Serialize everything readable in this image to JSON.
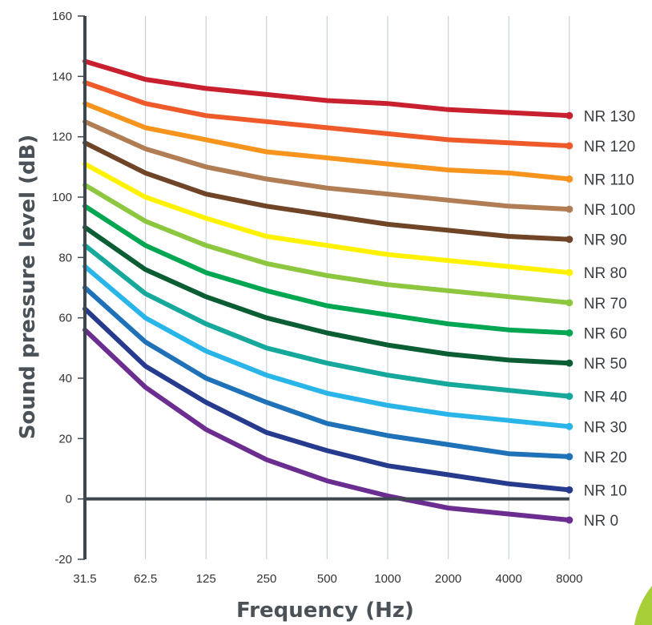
{
  "chart_data": {
    "type": "line",
    "xlabel": "Frequency (Hz)",
    "ylabel": "Sound pressure level (dB)",
    "categories": [
      "31.5",
      "62.5",
      "125",
      "250",
      "500",
      "1000",
      "2000",
      "4000",
      "8000"
    ],
    "ylim": [
      -20,
      160
    ],
    "yticks": [
      "-20",
      "0",
      "20",
      "40",
      "60",
      "80",
      "100",
      "120",
      "140",
      "160"
    ],
    "grid": "vertical",
    "legend": "end-of-line labels",
    "series": [
      {
        "name": "NR 130",
        "color": "#c8202f",
        "values": [
          145,
          139,
          136,
          134,
          132,
          131,
          129,
          128,
          127
        ]
      },
      {
        "name": "NR 120",
        "color": "#ee5a2a",
        "values": [
          138,
          131,
          127,
          125,
          123,
          121,
          119,
          118,
          117
        ]
      },
      {
        "name": "NR 110",
        "color": "#f7941d",
        "values": [
          131,
          123,
          119,
          115,
          113,
          111,
          109,
          108,
          106
        ]
      },
      {
        "name": "NR 100",
        "color": "#b07d54",
        "values": [
          125,
          116,
          110,
          106,
          103,
          101,
          99,
          97,
          96
        ]
      },
      {
        "name": "NR 90",
        "color": "#6f4427",
        "values": [
          118,
          108,
          101,
          97,
          94,
          91,
          89,
          87,
          86
        ]
      },
      {
        "name": "NR 80",
        "color": "#fff200",
        "values": [
          111,
          100,
          93,
          87,
          84,
          81,
          79,
          77,
          75
        ]
      },
      {
        "name": "NR 70",
        "color": "#8dc63f",
        "values": [
          104,
          92,
          84,
          78,
          74,
          71,
          69,
          67,
          65
        ]
      },
      {
        "name": "NR 60",
        "color": "#00a651",
        "values": [
          97,
          84,
          75,
          69,
          64,
          61,
          58,
          56,
          55
        ]
      },
      {
        "name": "NR 50",
        "color": "#0b5e34",
        "values": [
          90,
          76,
          67,
          60,
          55,
          51,
          48,
          46,
          45
        ]
      },
      {
        "name": "NR 40",
        "color": "#16a99b",
        "values": [
          84,
          68,
          58,
          50,
          45,
          41,
          38,
          36,
          34
        ]
      },
      {
        "name": "NR 30",
        "color": "#29b5e8",
        "values": [
          77,
          60,
          49,
          41,
          35,
          31,
          28,
          26,
          24
        ]
      },
      {
        "name": "NR 20",
        "color": "#1f72b8",
        "values": [
          70,
          52,
          40,
          32,
          25,
          21,
          18,
          15,
          14
        ]
      },
      {
        "name": "NR 10",
        "color": "#263b8e",
        "values": [
          63,
          44,
          32,
          22,
          16,
          11,
          8,
          5,
          3
        ]
      },
      {
        "name": "NR 0",
        "color": "#6c2d91",
        "values": [
          56,
          37,
          23,
          13,
          6,
          1,
          -3,
          -5,
          -7
        ]
      }
    ],
    "colors": {
      "axis": "#3e474e",
      "grid": "#c9d2d8",
      "decoration": "#a6cf38"
    }
  }
}
